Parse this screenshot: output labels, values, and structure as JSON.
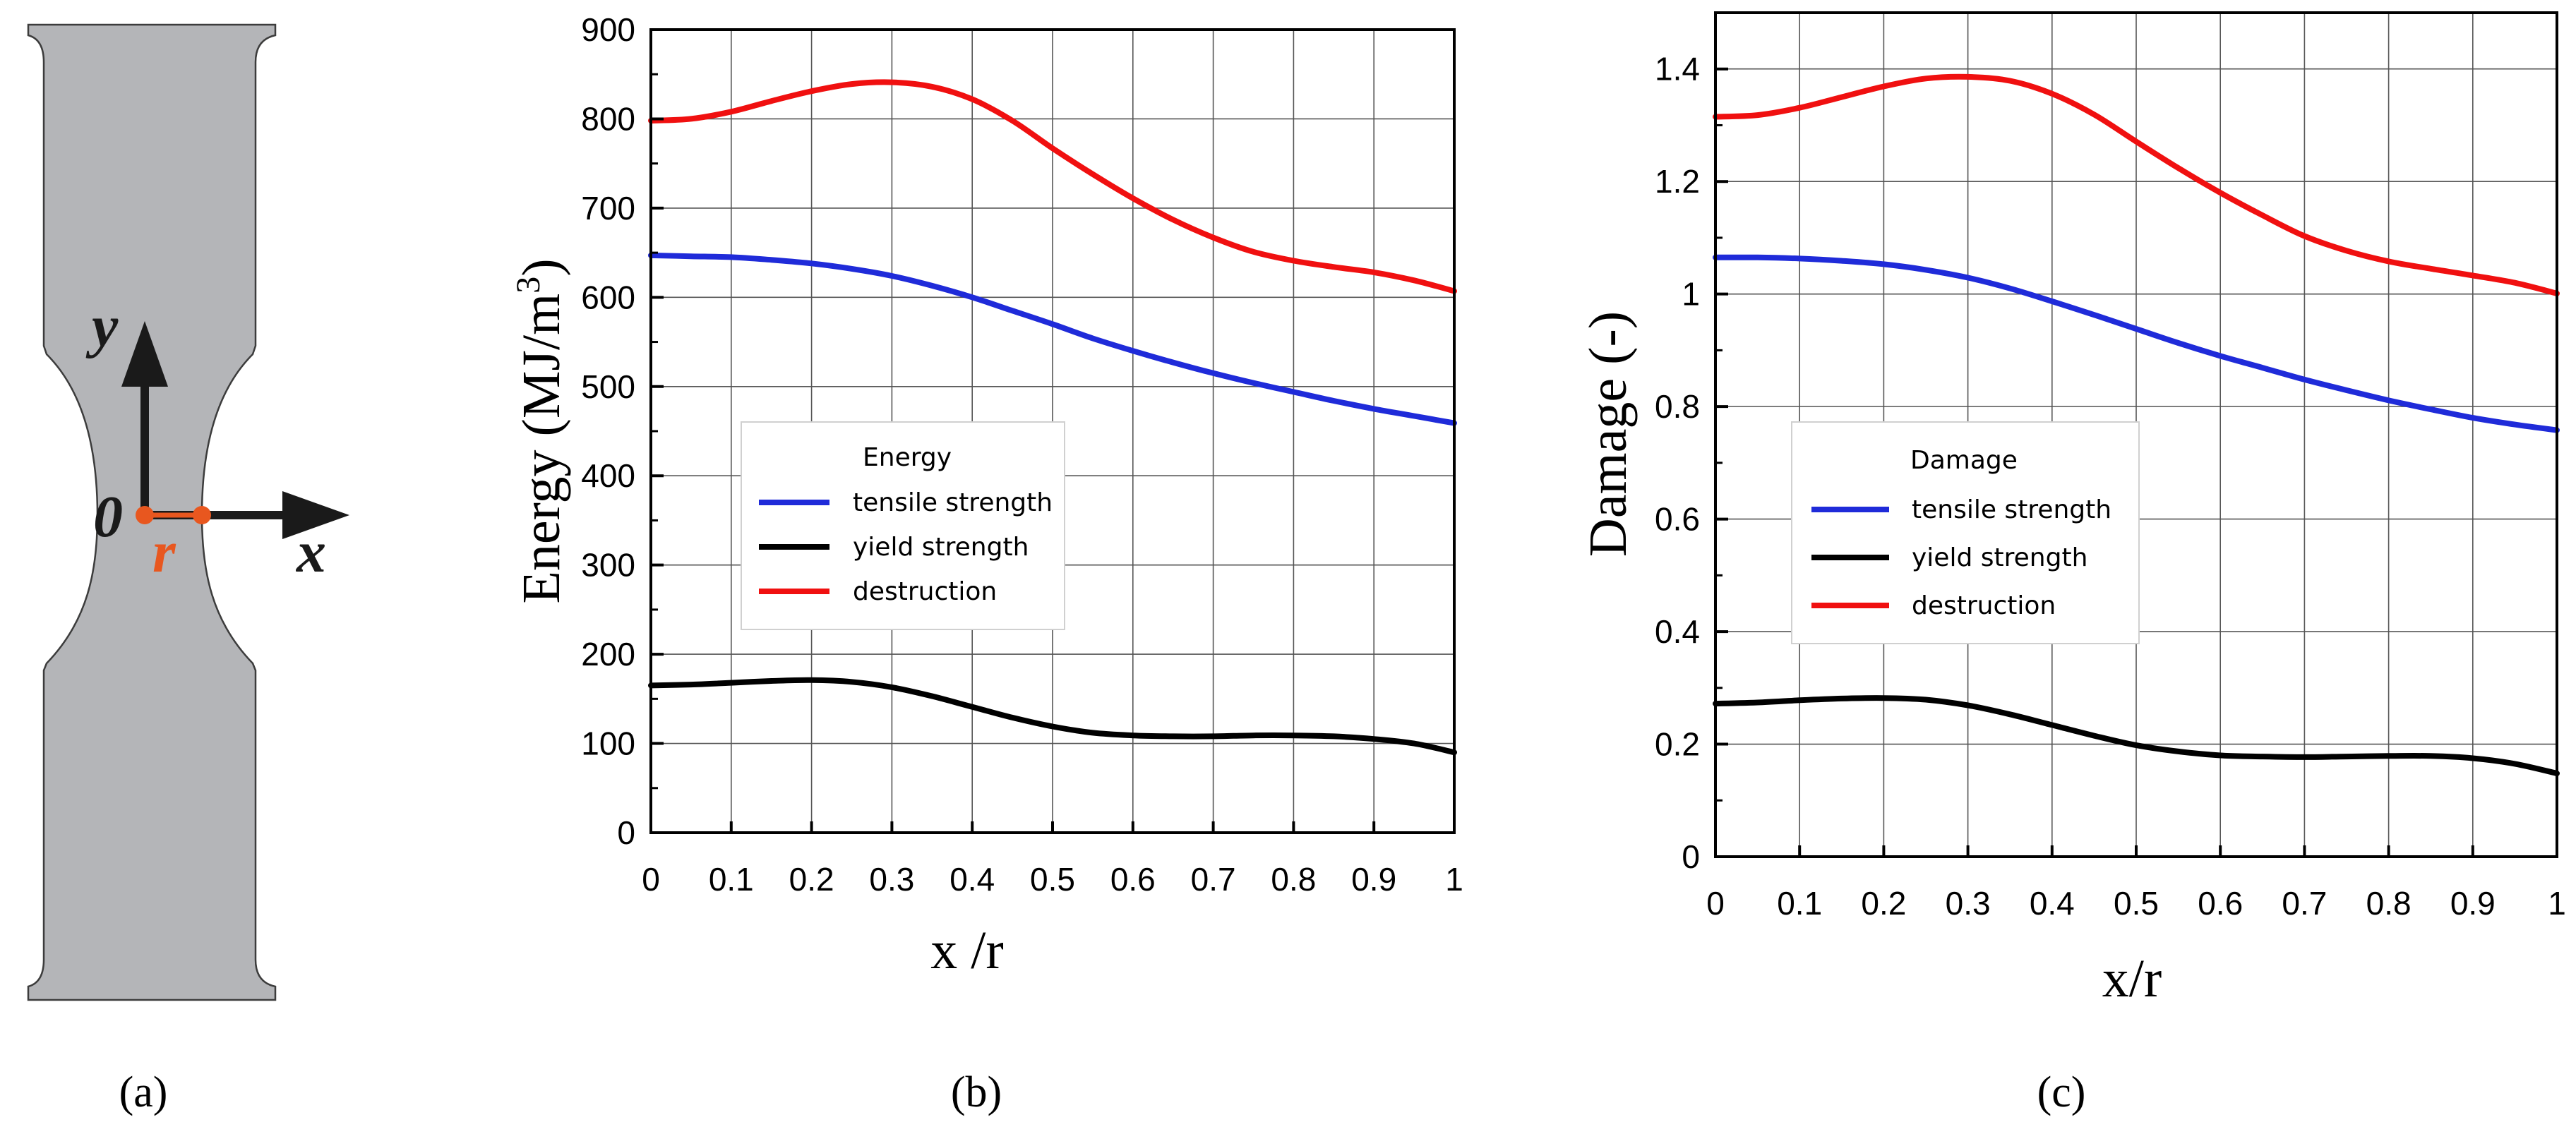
{
  "panel_labels": [
    "(a)",
    "(b)",
    "(c)"
  ],
  "diagram": {
    "y_axis_label": "y",
    "x_axis_label": "x",
    "origin_label": "0",
    "radius_label": "r",
    "colors": {
      "specimen": "#b4b5b8",
      "marker": "#e8571f",
      "arrow": "#1a1a1a"
    }
  },
  "colors": {
    "tensile": "#1f2bd9",
    "yield": "#000000",
    "destruction": "#f01010"
  },
  "chart_data": [
    {
      "type": "line",
      "id": "energy",
      "title": "",
      "xlabel": "x /r",
      "ylabel_main": "Energy (MJ/m",
      "ylabel_sup": "3",
      "ylabel_end": ")",
      "xlim": [
        0,
        1
      ],
      "ylim": [
        0,
        900
      ],
      "x_ticks": [
        0,
        0.1,
        0.2,
        0.3,
        0.4,
        0.5,
        0.6,
        0.7,
        0.8,
        0.9,
        1
      ],
      "x_tick_labels": [
        "0",
        "0.1",
        "0.2",
        "0.3",
        "0.4",
        "0.5",
        "0.6",
        "0.7",
        "0.8",
        "0.9",
        "1"
      ],
      "y_ticks": [
        0,
        100,
        200,
        300,
        400,
        500,
        600,
        700,
        800,
        900
      ],
      "y_tick_labels": [
        "0",
        "100",
        "200",
        "300",
        "400",
        "500",
        "600",
        "700",
        "800",
        "900"
      ],
      "grid": true,
      "legend": {
        "title": "Energy",
        "placement": "center-left"
      },
      "x": [
        0,
        0.05,
        0.1,
        0.15,
        0.2,
        0.25,
        0.3,
        0.35,
        0.4,
        0.45,
        0.5,
        0.55,
        0.6,
        0.65,
        0.7,
        0.75,
        0.8,
        0.85,
        0.9,
        0.95,
        1
      ],
      "series": [
        {
          "name": "tensile strength",
          "color_key": "tensile",
          "values": [
            647,
            646,
            645,
            642,
            638,
            632,
            624,
            613,
            600,
            585,
            570,
            554,
            540,
            527,
            515,
            504,
            494,
            484,
            475,
            467,
            459
          ]
        },
        {
          "name": "yield strength",
          "color_key": "yield",
          "values": [
            165,
            166,
            168,
            170,
            171,
            169,
            163,
            153,
            141,
            129,
            119,
            112,
            109,
            108,
            108,
            109,
            109,
            108,
            105,
            100,
            90
          ]
        },
        {
          "name": "destruction",
          "color_key": "destruction",
          "values": [
            798,
            800,
            808,
            820,
            831,
            839,
            841,
            836,
            822,
            798,
            767,
            738,
            711,
            687,
            667,
            651,
            641,
            634,
            628,
            619,
            607
          ]
        }
      ]
    },
    {
      "type": "line",
      "id": "damage",
      "title": "",
      "xlabel": "x/r",
      "ylabel_main": "Damage (-)",
      "ylabel_sup": "",
      "ylabel_end": "",
      "xlim": [
        0,
        1
      ],
      "ylim": [
        0,
        1.5
      ],
      "x_ticks": [
        0,
        0.1,
        0.2,
        0.3,
        0.4,
        0.5,
        0.6,
        0.7,
        0.8,
        0.9,
        1
      ],
      "x_tick_labels": [
        "0",
        "0.1",
        "0.2",
        "0.3",
        "0.4",
        "0.5",
        "0.6",
        "0.7",
        "0.8",
        "0.9",
        "1"
      ],
      "y_ticks": [
        0,
        0.2,
        0.4,
        0.6,
        0.8,
        1,
        1.2,
        1.4
      ],
      "y_tick_labels": [
        "0",
        "0.2",
        "0.4",
        "0.6",
        "0.8",
        "1",
        "1.2",
        "1.4"
      ],
      "grid": true,
      "legend": {
        "title": "Damage",
        "placement": "center-left"
      },
      "x": [
        0,
        0.05,
        0.1,
        0.15,
        0.2,
        0.25,
        0.3,
        0.35,
        0.4,
        0.45,
        0.5,
        0.55,
        0.6,
        0.65,
        0.7,
        0.75,
        0.8,
        0.85,
        0.9,
        0.95,
        1
      ],
      "series": [
        {
          "name": "tensile strength",
          "color_key": "tensile",
          "values": [
            1.065,
            1.065,
            1.063,
            1.059,
            1.053,
            1.043,
            1.029,
            1.01,
            0.987,
            0.963,
            0.938,
            0.913,
            0.89,
            0.869,
            0.848,
            0.829,
            0.811,
            0.795,
            0.78,
            0.768,
            0.758
          ]
        },
        {
          "name": "yield strength",
          "color_key": "yield",
          "values": [
            0.272,
            0.274,
            0.278,
            0.281,
            0.282,
            0.279,
            0.269,
            0.253,
            0.234,
            0.215,
            0.198,
            0.187,
            0.18,
            0.178,
            0.177,
            0.178,
            0.179,
            0.179,
            0.175,
            0.165,
            0.148
          ]
        },
        {
          "name": "destruction",
          "color_key": "destruction",
          "values": [
            1.315,
            1.318,
            1.331,
            1.35,
            1.369,
            1.383,
            1.386,
            1.379,
            1.356,
            1.319,
            1.271,
            1.224,
            1.18,
            1.14,
            1.103,
            1.077,
            1.058,
            1.045,
            1.033,
            1.02,
            1.001
          ]
        }
      ]
    }
  ]
}
